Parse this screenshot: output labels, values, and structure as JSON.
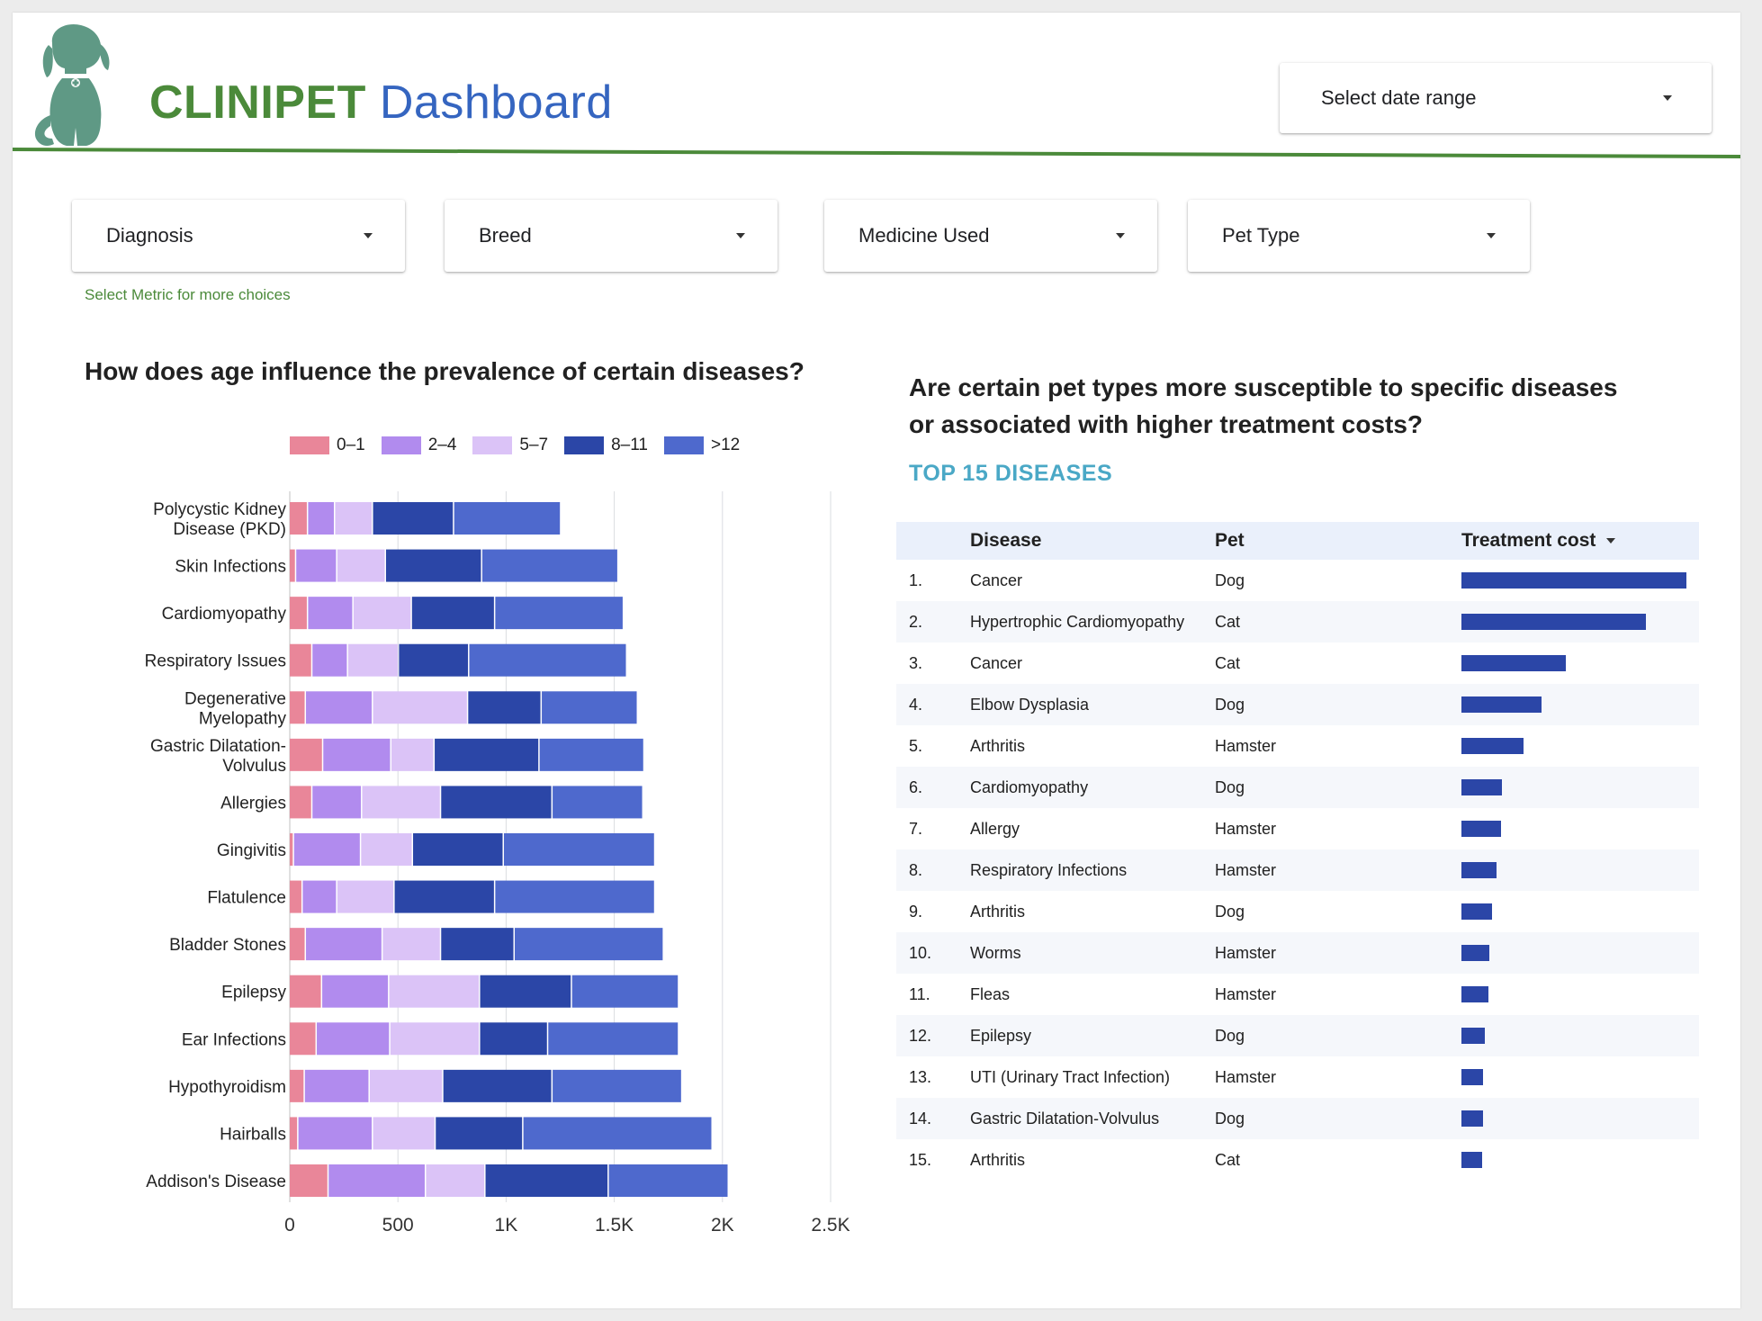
{
  "header": {
    "brand": "CLINIPET",
    "title_rest": "Dashboard",
    "date_range_label": "Select date range"
  },
  "filters": [
    {
      "label": "Diagnosis"
    },
    {
      "label": "Breed"
    },
    {
      "label": "Medicine Used"
    },
    {
      "label": "Pet Type"
    }
  ],
  "hint": "Select Metric for more choices",
  "left_panel": {
    "question": "How does age influence the prevalence of certain diseases?"
  },
  "right_panel": {
    "question_line1": "Are certain pet types more susceptible to specific diseases",
    "question_line2": "or associated with higher treatment costs?",
    "subtitle": "TOP 15 DISEASES"
  },
  "colors": {
    "brand_green": "#4b8a3a",
    "brand_blue": "#3565c0",
    "age_0_1": "#e98699",
    "age_2_4": "#b18bee",
    "age_5_7": "#dbc3f7",
    "age_8_11": "#2b46a7",
    "age_12_plus": "#4e69cd"
  },
  "chart_data": [
    {
      "type": "bar",
      "orientation": "horizontal",
      "stacked": true,
      "title": "How does age influence the prevalence of certain diseases?",
      "categories": [
        "Polycystic Kidney\nDisease (PKD)",
        "Skin Infections",
        "Cardiomyopathy",
        "Respiratory Issues",
        "Degenerative\nMyelopathy",
        "Gastric Dilatation-\nVolvulus",
        "Allergies",
        "Gingivitis",
        "Flatulence",
        "Bladder Stones",
        "Epilepsy",
        "Ear Infections",
        "Hypothyroidism",
        "Hairballs",
        "Addison's Disease"
      ],
      "series": [
        {
          "name": "0–1",
          "values": [
            85,
            30,
            85,
            105,
            75,
            155,
            105,
            20,
            60,
            75,
            150,
            125,
            70,
            40,
            180
          ]
        },
        {
          "name": "2–4",
          "values": [
            125,
            190,
            210,
            165,
            310,
            315,
            230,
            310,
            160,
            355,
            310,
            340,
            300,
            345,
            450
          ]
        },
        {
          "name": "5–7",
          "values": [
            175,
            225,
            270,
            235,
            440,
            200,
            365,
            240,
            265,
            270,
            420,
            415,
            340,
            290,
            275
          ]
        },
        {
          "name": "8–11",
          "values": [
            375,
            445,
            385,
            325,
            340,
            485,
            515,
            420,
            465,
            340,
            425,
            315,
            505,
            405,
            570
          ]
        },
        {
          "name": ">12",
          "values": [
            495,
            630,
            595,
            730,
            445,
            485,
            420,
            700,
            740,
            690,
            495,
            605,
            600,
            875,
            555
          ]
        }
      ],
      "xlabel": "",
      "ylabel": "",
      "xlim": [
        0,
        2500
      ],
      "xticks": [
        "0",
        "500",
        "1K",
        "1.5K",
        "2K",
        "2.5K"
      ],
      "legend": "top",
      "grid": "vertical"
    },
    {
      "type": "table",
      "title": "TOP 15 DISEASES",
      "columns": [
        "Disease",
        "Pet",
        "Treatment cost"
      ],
      "rows": [
        {
          "rank": "1.",
          "disease": "Cancer",
          "pet": "Dog",
          "cost": 100
        },
        {
          "rank": "2.",
          "disease": "Hypertrophic Cardiomyopathy",
          "pet": "Cat",
          "cost": 82
        },
        {
          "rank": "3.",
          "disease": "Cancer",
          "pet": "Cat",
          "cost": 46.5
        },
        {
          "rank": "4.",
          "disease": "Elbow Dysplasia",
          "pet": "Dog",
          "cost": 35.5
        },
        {
          "rank": "5.",
          "disease": "Arthritis",
          "pet": "Hamster",
          "cost": 27.5
        },
        {
          "rank": "6.",
          "disease": "Cardiomyopathy",
          "pet": "Dog",
          "cost": 18
        },
        {
          "rank": "7.",
          "disease": "Allergy",
          "pet": "Hamster",
          "cost": 17.5
        },
        {
          "rank": "8.",
          "disease": "Respiratory Infections",
          "pet": "Hamster",
          "cost": 15.5
        },
        {
          "rank": "9.",
          "disease": "Arthritis",
          "pet": "Dog",
          "cost": 13.5
        },
        {
          "rank": "10.",
          "disease": "Worms",
          "pet": "Hamster",
          "cost": 12.5
        },
        {
          "rank": "11.",
          "disease": "Fleas",
          "pet": "Hamster",
          "cost": 12
        },
        {
          "rank": "12.",
          "disease": "Epilepsy",
          "pet": "Dog",
          "cost": 10.5
        },
        {
          "rank": "13.",
          "disease": "UTI (Urinary Tract Infection)",
          "pet": "Hamster",
          "cost": 9.5
        },
        {
          "rank": "14.",
          "disease": "Gastric Dilatation-Volvulus",
          "pet": "Dog",
          "cost": 9.5
        },
        {
          "rank": "15.",
          "disease": "Arthritis",
          "pet": "Cat",
          "cost": 9
        }
      ],
      "sort": "Treatment cost descending"
    }
  ]
}
